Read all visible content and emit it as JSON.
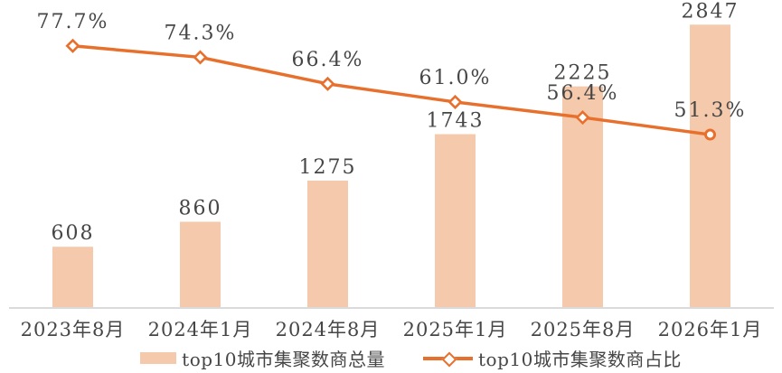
{
  "chart_data": {
    "type": "combo",
    "title": "",
    "categories": [
      "2023年8月",
      "2024年1月",
      "2024年8月",
      "2025年1月",
      "2025年8月",
      "2026年1月"
    ],
    "series": [
      {
        "name": "top10城市集聚数商总量",
        "type": "bar",
        "axis": "left",
        "color": "#F5C9AC",
        "values": [
          608,
          860,
          1275,
          1743,
          2225,
          2847
        ],
        "data_labels": [
          "608",
          "860",
          "1275",
          "1743",
          "2225",
          "2847"
        ]
      },
      {
        "name": "top10城市集聚数商占比",
        "type": "line",
        "axis": "right",
        "color": "#E8702D",
        "marker": "diamond",
        "last_marker": "circle",
        "values": [
          77.7,
          74.3,
          66.4,
          61.0,
          56.4,
          51.3
        ],
        "data_labels": [
          "77.7%",
          "74.3%",
          "66.4%",
          "61.0%",
          "56.4%",
          "51.3%"
        ]
      }
    ],
    "value_axis": {
      "min": 0,
      "max": 3050,
      "labels_visible": false
    },
    "percent_axis": {
      "min": 0,
      "max": 90,
      "labels_visible": false
    },
    "grid": false,
    "legend_position": "bottom",
    "colors": {
      "text": "#464646",
      "axis_line": "#DADADA",
      "marker_fill": "#FFFFFF"
    }
  }
}
